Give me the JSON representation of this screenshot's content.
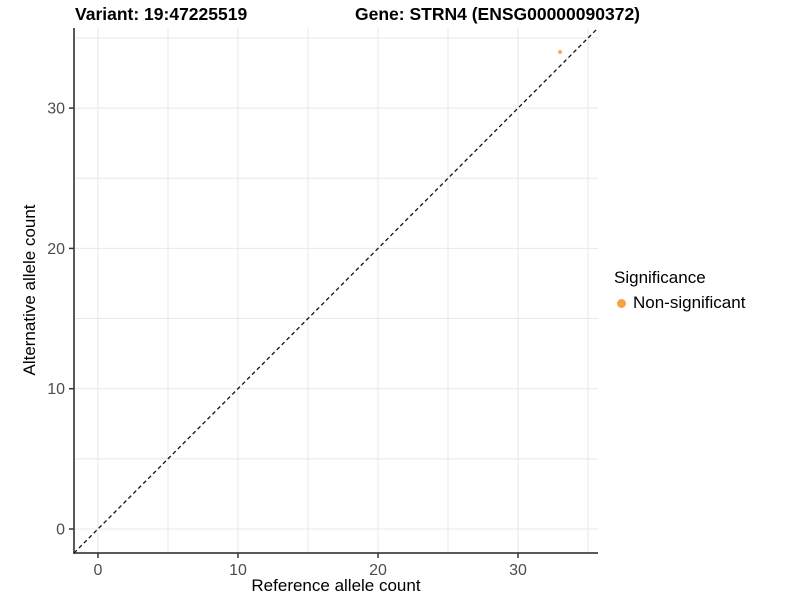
{
  "chart_data": {
    "type": "scatter",
    "titles": {
      "left": "Variant: 19:47225519",
      "right": "Gene: STRN4 (ENSG00000090372)"
    },
    "xlabel": "Reference allele count",
    "ylabel": "Alternative allele count",
    "x_ticks": [
      0,
      10,
      20,
      30
    ],
    "y_ticks": [
      0,
      10,
      20,
      30
    ],
    "xlim": [
      -1.71,
      35.71
    ],
    "ylim": [
      -1.71,
      35.71
    ],
    "grid": {
      "on": true,
      "step": 5,
      "color": "#E8E8E8"
    },
    "axis_line_color": "#595959",
    "tick_mark_color": "#333333",
    "tick_label_color": "#4D4D4D",
    "identity_line": {
      "style": "dashed",
      "color": "#111111",
      "from": [
        -1.71,
        -1.71
      ],
      "to": [
        35.71,
        35.71
      ]
    },
    "points": [
      {
        "x": 33,
        "y": 34,
        "series": "Non-significant",
        "color": "#F9A242",
        "radius_px": 1.9
      }
    ],
    "legend": {
      "title": "Significance",
      "position": "right",
      "items": [
        {
          "label": "Non-significant",
          "color": "#F9A242"
        }
      ]
    },
    "background": "#FFFFFF"
  }
}
